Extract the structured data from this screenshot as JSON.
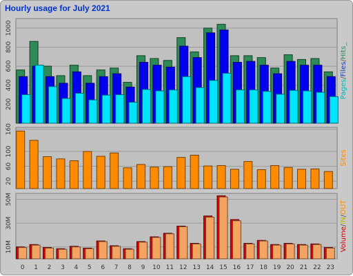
{
  "title": "Hourly usage for July 2021",
  "chart_data": [
    {
      "type": "bar",
      "categories": [
        "0",
        "1",
        "2",
        "3",
        "4",
        "5",
        "6",
        "7",
        "8",
        "9",
        "10",
        "11",
        "12",
        "13",
        "14",
        "15",
        "16",
        "17",
        "18",
        "19",
        "20",
        "21",
        "22",
        "23"
      ],
      "series": [
        {
          "name": "Hits",
          "color": "#2e8b57",
          "values": [
            560,
            860,
            600,
            500,
            610,
            500,
            560,
            580,
            430,
            710,
            680,
            660,
            900,
            750,
            1000,
            1040,
            710,
            710,
            690,
            580,
            720,
            670,
            680,
            540
          ]
        },
        {
          "name": "Files",
          "color": "#0000ee",
          "values": [
            490,
            600,
            490,
            420,
            540,
            420,
            490,
            520,
            380,
            640,
            610,
            590,
            810,
            690,
            950,
            980,
            640,
            650,
            610,
            520,
            650,
            610,
            610,
            490
          ]
        },
        {
          "name": "Pages",
          "color": "#00e5ff",
          "values": [
            300,
            610,
            385,
            260,
            315,
            245,
            295,
            300,
            220,
            355,
            340,
            350,
            490,
            375,
            450,
            525,
            350,
            350,
            335,
            305,
            345,
            340,
            325,
            280
          ]
        }
      ],
      "yticks": [
        "200",
        "400",
        "600",
        "800",
        "1000"
      ],
      "ylim": [
        0,
        1100
      ],
      "legend": {
        "parts": [
          "Pages",
          "Files",
          "Hits"
        ],
        "separator": "/",
        "end": "_",
        "colors": [
          "#00b8b8",
          "#1a3fb0",
          "#2e8b57"
        ]
      }
    },
    {
      "type": "bar",
      "categories": [
        "0",
        "1",
        "2",
        "3",
        "4",
        "5",
        "6",
        "7",
        "8",
        "9",
        "10",
        "11",
        "12",
        "13",
        "14",
        "15",
        "16",
        "17",
        "18",
        "19",
        "20",
        "21",
        "22",
        "23"
      ],
      "series": [
        {
          "name": "Sites",
          "color": "#ff8c00",
          "values": [
            155,
            130,
            86,
            80,
            75,
            100,
            87,
            96,
            56,
            65,
            58,
            59,
            84,
            90,
            61,
            62,
            52,
            73,
            51,
            62,
            57,
            52,
            53,
            46
          ]
        }
      ],
      "yticks": [
        "20",
        "60",
        "100",
        "160"
      ],
      "ylim": [
        0,
        165
      ],
      "legend": {
        "parts": [
          "Sites"
        ],
        "colors": [
          "#ff8c00"
        ]
      }
    },
    {
      "type": "bar",
      "categories": [
        "0",
        "1",
        "2",
        "3",
        "4",
        "5",
        "6",
        "7",
        "8",
        "9",
        "10",
        "11",
        "12",
        "13",
        "14",
        "15",
        "16",
        "17",
        "18",
        "19",
        "20",
        "21",
        "22",
        "23"
      ],
      "series": [
        {
          "name": "Volume",
          "color": "#dd0000",
          "values": [
            10,
            12,
            9.5,
            8.5,
            10.5,
            9,
            15,
            11,
            8.5,
            14.5,
            18.5,
            21.5,
            27.5,
            13,
            36,
            53,
            33,
            13,
            15.5,
            12,
            13,
            12,
            12.5,
            9.5
          ]
        },
        {
          "name": "OUT",
          "color": "#f4a460",
          "values": [
            9.5,
            11.5,
            9,
            8,
            10,
            8.5,
            14.5,
            10.5,
            8,
            14,
            18,
            21,
            27,
            12.5,
            35,
            52,
            32,
            12.5,
            15,
            11.5,
            12.5,
            11.5,
            12,
            9
          ]
        }
      ],
      "yticks": [
        "10M",
        "30M",
        "50M"
      ],
      "ylim": [
        0,
        55
      ],
      "legend": {
        "parts": [
          "Volume",
          "IN",
          "OUT"
        ],
        "separator": "/",
        "colors": [
          "#cc0000",
          "#b8b800",
          "#ff8c00"
        ]
      }
    }
  ],
  "xaxis_labels": [
    "0",
    "1",
    "2",
    "3",
    "4",
    "5",
    "6",
    "7",
    "8",
    "9",
    "10",
    "11",
    "12",
    "13",
    "14",
    "15",
    "16",
    "17",
    "18",
    "19",
    "20",
    "21",
    "22",
    "23"
  ]
}
